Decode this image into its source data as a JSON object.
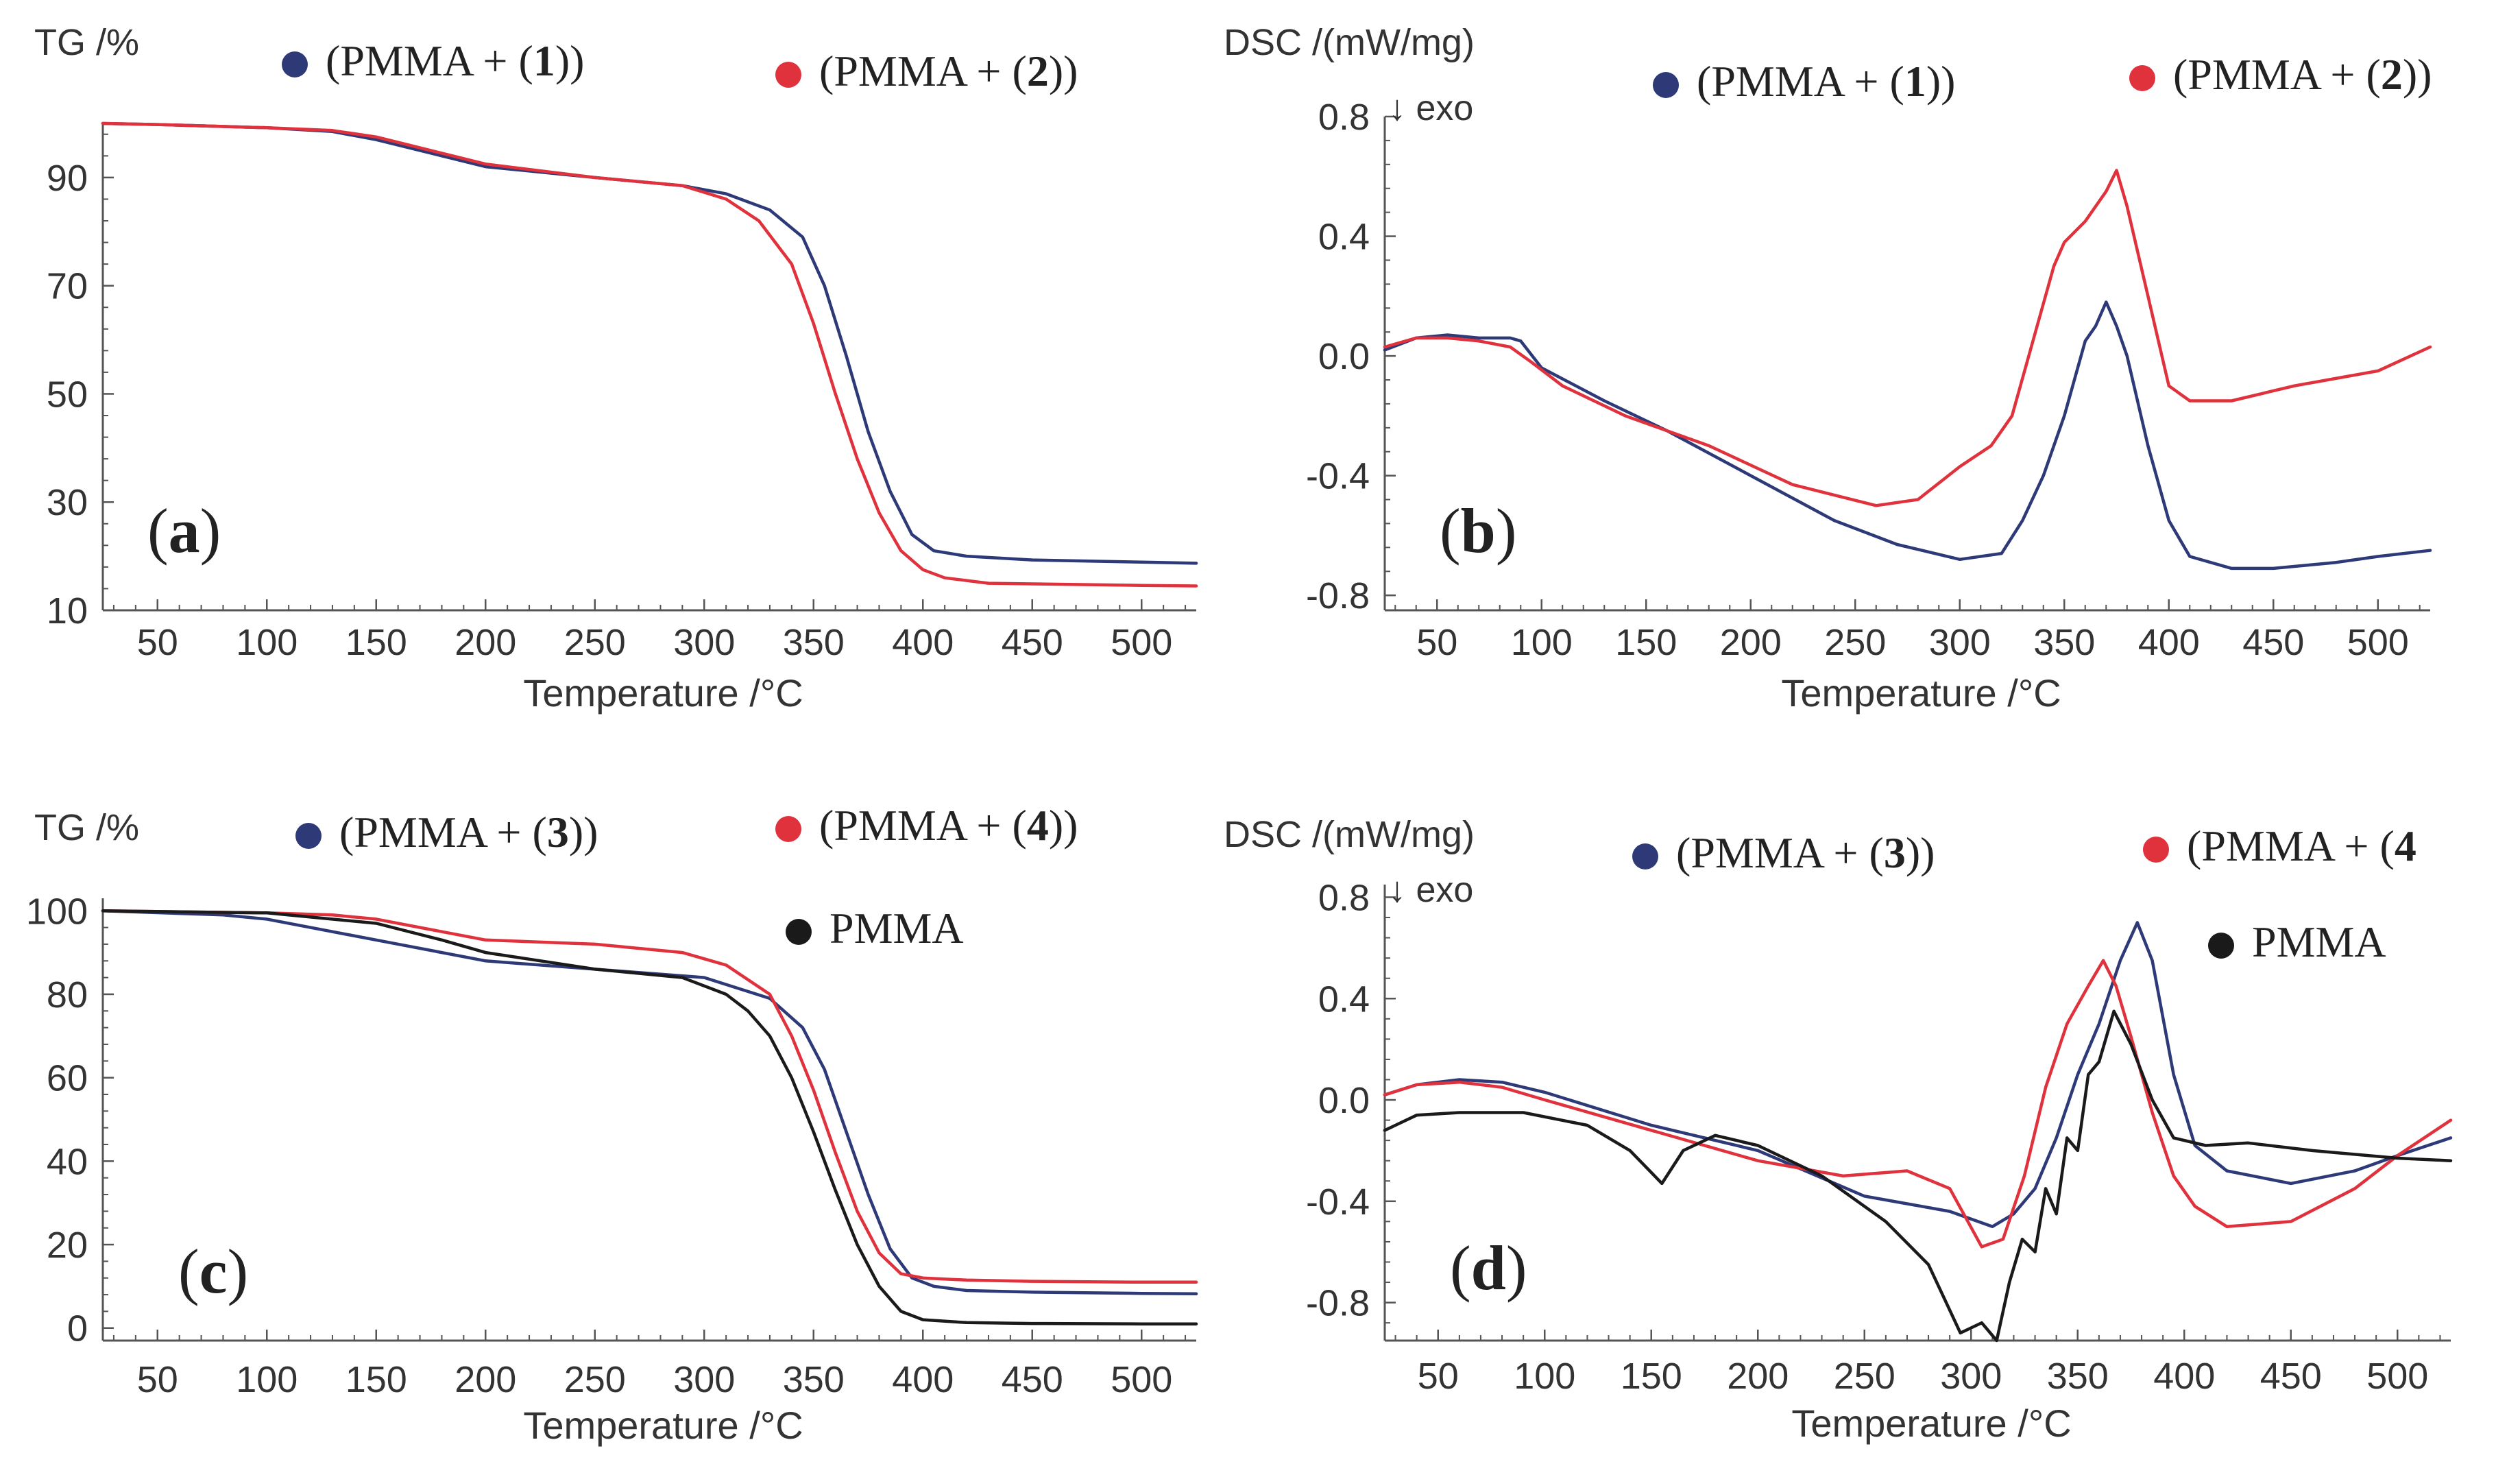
{
  "figure": {
    "colors": {
      "blue": "#2e3a78",
      "red": "#e0323c",
      "black": "#1a1a1a",
      "axis": "#555555"
    }
  },
  "chart_data": [
    {
      "type": "line",
      "panel_label": "(a)",
      "ylabel": "TG /%",
      "xlabel": "Temperature /°C",
      "xlim": [
        25,
        525
      ],
      "ylim": [
        10,
        100
      ],
      "yticks": [
        10,
        30,
        50,
        70,
        90
      ],
      "xticks": [
        50,
        100,
        150,
        200,
        250,
        300,
        350,
        400,
        450,
        500
      ],
      "grid": false,
      "legend": [
        {
          "marker_color": "#2e3a78",
          "parts": [
            {
              "t": "(PMMA + (",
              "b": false
            },
            {
              "t": "1",
              "b": true
            },
            {
              "t": "))",
              "b": false
            }
          ]
        },
        {
          "marker_color": "#e0323c",
          "parts": [
            {
              "t": "(PMMA + (",
              "b": false
            },
            {
              "t": "2",
              "b": true
            },
            {
              "t": "))",
              "b": false
            }
          ]
        }
      ],
      "series": [
        {
          "color": "#2e3a78",
          "x": [
            25,
            50,
            100,
            130,
            150,
            180,
            200,
            250,
            290,
            310,
            330,
            345,
            355,
            365,
            375,
            385,
            395,
            405,
            420,
            450,
            500,
            525
          ],
          "y": [
            100,
            99.8,
            99.2,
            98.5,
            97,
            94,
            92,
            90,
            88.5,
            87,
            84,
            79,
            70,
            57,
            43,
            32,
            24,
            21,
            20,
            19.3,
            18.9,
            18.7
          ]
        },
        {
          "color": "#e0323c",
          "x": [
            25,
            50,
            100,
            130,
            150,
            180,
            200,
            250,
            290,
            310,
            325,
            340,
            350,
            360,
            370,
            380,
            390,
            400,
            410,
            430,
            500,
            525
          ],
          "y": [
            100,
            99.8,
            99.2,
            98.7,
            97.5,
            94.5,
            92.5,
            90,
            88.5,
            86,
            82,
            74,
            63,
            50,
            38,
            28,
            21,
            17.5,
            16,
            15,
            14.6,
            14.5
          ]
        }
      ]
    },
    {
      "type": "line",
      "panel_label": "(b)",
      "ylabel": "DSC /(mW/mg)",
      "annotation": "↓ exo",
      "xlabel": "Temperature /°C",
      "xlim": [
        25,
        525
      ],
      "ylim": [
        -0.85,
        0.8
      ],
      "yticks": [
        -0.8,
        -0.4,
        0.0,
        0.4,
        0.8
      ],
      "ytick_labels": [
        "-0.8",
        "-0.4",
        "0.0",
        "0.4",
        "0.8"
      ],
      "xticks": [
        50,
        100,
        150,
        200,
        250,
        300,
        350,
        400,
        450,
        500
      ],
      "grid": false,
      "legend": [
        {
          "marker_color": "#2e3a78",
          "parts": [
            {
              "t": "(PMMA + (",
              "b": false
            },
            {
              "t": "1",
              "b": true
            },
            {
              "t": "))",
              "b": false
            }
          ]
        },
        {
          "marker_color": "#e0323c",
          "parts": [
            {
              "t": "(PMMA + (",
              "b": false
            },
            {
              "t": "2",
              "b": true
            },
            {
              "t": "))",
              "b": false
            }
          ]
        }
      ],
      "series": [
        {
          "color": "#2e3a78",
          "x": [
            25,
            40,
            55,
            70,
            85,
            90,
            100,
            130,
            160,
            200,
            240,
            270,
            300,
            320,
            330,
            340,
            350,
            360,
            365,
            370,
            375,
            380,
            390,
            400,
            410,
            430,
            450,
            480,
            500,
            525
          ],
          "y": [
            0.02,
            0.06,
            0.07,
            0.06,
            0.06,
            0.05,
            -0.04,
            -0.15,
            -0.25,
            -0.4,
            -0.55,
            -0.63,
            -0.68,
            -0.66,
            -0.55,
            -0.4,
            -0.2,
            0.05,
            0.1,
            0.18,
            0.1,
            0.0,
            -0.3,
            -0.55,
            -0.67,
            -0.71,
            -0.71,
            -0.69,
            -0.67,
            -0.65
          ]
        },
        {
          "color": "#e0323c",
          "x": [
            25,
            40,
            55,
            70,
            85,
            95,
            110,
            140,
            180,
            220,
            260,
            280,
            300,
            315,
            325,
            335,
            345,
            350,
            360,
            370,
            375,
            380,
            390,
            400,
            410,
            430,
            460,
            500,
            525
          ],
          "y": [
            0.03,
            0.06,
            0.06,
            0.05,
            0.03,
            -0.02,
            -0.1,
            -0.2,
            -0.3,
            -0.43,
            -0.5,
            -0.48,
            -0.37,
            -0.3,
            -0.2,
            0.05,
            0.3,
            0.38,
            0.45,
            0.55,
            0.62,
            0.5,
            0.2,
            -0.1,
            -0.15,
            -0.15,
            -0.1,
            -0.05,
            0.03
          ]
        }
      ]
    },
    {
      "type": "line",
      "panel_label": "(c)",
      "ylabel": "TG /%",
      "xlabel": "Temperature /°C",
      "xlim": [
        25,
        525
      ],
      "ylim": [
        -3,
        103
      ],
      "yticks": [
        0,
        20,
        40,
        60,
        80,
        100
      ],
      "xticks": [
        50,
        100,
        150,
        200,
        250,
        300,
        350,
        400,
        450,
        500
      ],
      "grid": false,
      "legend": [
        {
          "marker_color": "#2e3a78",
          "parts": [
            {
              "t": "(PMMA + (",
              "b": false
            },
            {
              "t": "3",
              "b": true
            },
            {
              "t": "))",
              "b": false
            }
          ]
        },
        {
          "marker_color": "#e0323c",
          "parts": [
            {
              "t": "(PMMA + (",
              "b": false
            },
            {
              "t": "4",
              "b": true
            },
            {
              "t": "))",
              "b": false
            }
          ]
        },
        {
          "marker_color": "#1a1a1a",
          "parts": [
            {
              "t": "PMMA",
              "b": false
            }
          ]
        }
      ],
      "series": [
        {
          "color": "#2e3a78",
          "x": [
            25,
            80,
            100,
            130,
            160,
            200,
            250,
            300,
            330,
            345,
            355,
            365,
            375,
            385,
            395,
            405,
            420,
            450,
            500,
            525
          ],
          "y": [
            100,
            99,
            98,
            95,
            92,
            88,
            86,
            84,
            79,
            72,
            62,
            47,
            32,
            19,
            12,
            10,
            9,
            8.6,
            8.3,
            8.2
          ]
        },
        {
          "color": "#e0323c",
          "x": [
            25,
            100,
            130,
            150,
            180,
            200,
            250,
            290,
            310,
            330,
            340,
            350,
            360,
            370,
            380,
            390,
            400,
            420,
            450,
            500,
            525
          ],
          "y": [
            100,
            99.5,
            99,
            98,
            95,
            93,
            92,
            90,
            87,
            80,
            70,
            57,
            42,
            28,
            18,
            13,
            12,
            11.5,
            11.2,
            11,
            11
          ]
        },
        {
          "color": "#1a1a1a",
          "x": [
            25,
            100,
            150,
            180,
            200,
            250,
            290,
            310,
            320,
            330,
            340,
            350,
            360,
            370,
            380,
            390,
            400,
            420,
            450,
            500,
            525
          ],
          "y": [
            100,
            99.5,
            97,
            93,
            90,
            86,
            84,
            80,
            76,
            70,
            60,
            47,
            33,
            20,
            10,
            4,
            2,
            1.3,
            1.1,
            1.0,
            1.0
          ]
        }
      ]
    },
    {
      "type": "line",
      "panel_label": "(d)",
      "ylabel": "DSC /(mW/mg)",
      "annotation": "↓ exo",
      "xlabel": "Temperature /°C",
      "xlim": [
        25,
        525
      ],
      "ylim": [
        -0.95,
        0.85
      ],
      "yticks": [
        -0.8,
        -0.4,
        0.0,
        0.4,
        0.8
      ],
      "ytick_labels": [
        "-0.8",
        "-0.4",
        "0.0",
        "0.4",
        "0.8"
      ],
      "xticks": [
        50,
        100,
        150,
        200,
        250,
        300,
        350,
        400,
        450,
        500
      ],
      "grid": false,
      "legend": [
        {
          "marker_color": "#2e3a78",
          "parts": [
            {
              "t": "(PMMA + (",
              "b": false
            },
            {
              "t": "3",
              "b": true
            },
            {
              "t": "))",
              "b": false
            }
          ]
        },
        {
          "marker_color": "#e0323c",
          "parts": [
            {
              "t": "(PMMA + (",
              "b": false
            },
            {
              "t": "4",
              "b": true
            },
            {
              "t": "",
              "b": false
            }
          ]
        },
        {
          "marker_color": "#1a1a1a",
          "parts": [
            {
              "t": "PMMA",
              "b": false
            }
          ]
        }
      ],
      "series": [
        {
          "color": "#2e3a78",
          "x": [
            25,
            40,
            60,
            80,
            100,
            150,
            200,
            250,
            290,
            310,
            320,
            330,
            340,
            350,
            360,
            370,
            378,
            385,
            395,
            405,
            420,
            450,
            480,
            500,
            525
          ],
          "y": [
            0.02,
            0.06,
            0.08,
            0.07,
            0.03,
            -0.1,
            -0.2,
            -0.38,
            -0.44,
            -0.5,
            -0.45,
            -0.35,
            -0.15,
            0.1,
            0.3,
            0.55,
            0.7,
            0.55,
            0.1,
            -0.18,
            -0.28,
            -0.33,
            -0.28,
            -0.22,
            -0.15
          ]
        },
        {
          "color": "#e0323c",
          "x": [
            25,
            40,
            60,
            80,
            100,
            150,
            200,
            240,
            270,
            290,
            305,
            315,
            325,
            335,
            345,
            355,
            362,
            368,
            375,
            385,
            395,
            405,
            420,
            450,
            480,
            500,
            525
          ],
          "y": [
            0.02,
            0.06,
            0.07,
            0.05,
            0.0,
            -0.12,
            -0.24,
            -0.3,
            -0.28,
            -0.35,
            -0.58,
            -0.55,
            -0.3,
            0.05,
            0.3,
            0.45,
            0.55,
            0.45,
            0.25,
            -0.05,
            -0.3,
            -0.42,
            -0.5,
            -0.48,
            -0.35,
            -0.22,
            -0.08
          ]
        },
        {
          "color": "#1a1a1a",
          "x": [
            25,
            40,
            60,
            90,
            120,
            140,
            155,
            165,
            180,
            200,
            230,
            260,
            280,
            295,
            305,
            312,
            318,
            324,
            330,
            335,
            340,
            345,
            350,
            355,
            360,
            367,
            375,
            385,
            395,
            410,
            430,
            460,
            500,
            525
          ],
          "y": [
            -0.12,
            -0.06,
            -0.05,
            -0.05,
            -0.1,
            -0.2,
            -0.33,
            -0.2,
            -0.14,
            -0.18,
            -0.3,
            -0.48,
            -0.65,
            -0.92,
            -0.88,
            -0.95,
            -0.72,
            -0.55,
            -0.6,
            -0.35,
            -0.45,
            -0.15,
            -0.2,
            0.1,
            0.15,
            0.35,
            0.22,
            0.0,
            -0.15,
            -0.18,
            -0.17,
            -0.2,
            -0.23,
            -0.24
          ]
        }
      ]
    }
  ]
}
